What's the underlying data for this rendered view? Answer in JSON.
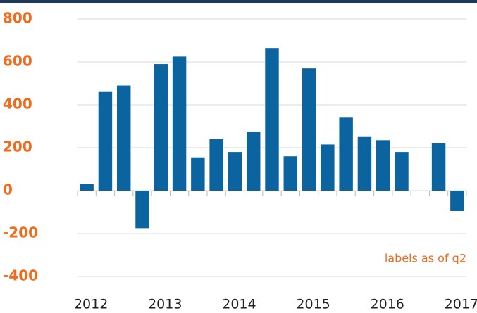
{
  "chart_data": {
    "type": "bar",
    "categories": [
      "2012",
      null,
      null,
      null,
      "2013",
      null,
      null,
      null,
      "2014",
      null,
      null,
      null,
      "2015",
      null,
      null,
      null,
      "2016",
      null,
      null,
      null,
      "2017"
    ],
    "values": [
      30,
      460,
      490,
      -175,
      590,
      625,
      155,
      240,
      180,
      275,
      665,
      160,
      570,
      215,
      340,
      250,
      235,
      180,
      null,
      220,
      -95
    ],
    "color": "#0b64a0",
    "ylim": [
      -400,
      800
    ],
    "yticks": [
      -400,
      -200,
      0,
      200,
      400,
      600,
      800
    ],
    "grid": true,
    "annotation": "labels as of q2"
  }
}
